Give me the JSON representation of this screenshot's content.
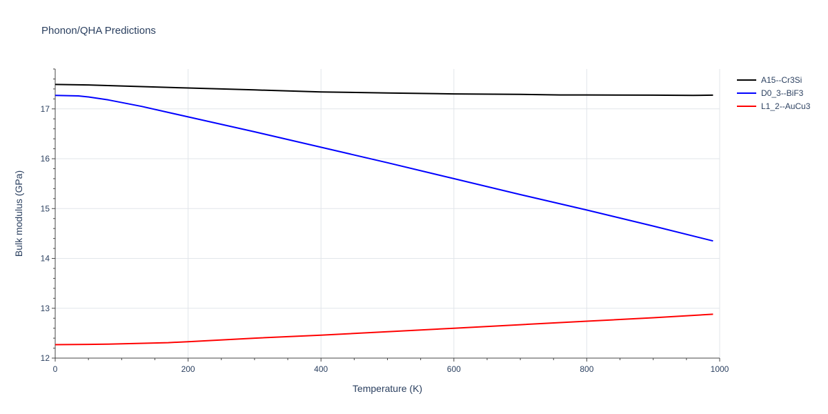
{
  "chart_data": {
    "type": "line",
    "title": "Phonon/QHA Predictions",
    "xlabel": "Temperature (K)",
    "ylabel": "Bulk modulus (GPa)",
    "xlim": [
      0,
      1000
    ],
    "ylim": [
      12,
      17.8
    ],
    "xticks": [
      0,
      200,
      400,
      600,
      800,
      1000
    ],
    "yticks": [
      12,
      13,
      14,
      15,
      16,
      17
    ],
    "grid": true,
    "legend_position": "top-right",
    "series": [
      {
        "name": "A15--Cr3Si",
        "color": "#000000",
        "x": [
          0,
          50,
          100,
          200,
          300,
          400,
          500,
          600,
          700,
          760,
          800,
          900,
          960,
          990
        ],
        "y": [
          17.49,
          17.48,
          17.46,
          17.42,
          17.38,
          17.34,
          17.32,
          17.3,
          17.29,
          17.28,
          17.28,
          17.275,
          17.27,
          17.275
        ]
      },
      {
        "name": "D0_3--BiF3",
        "color": "#0000ff",
        "x": [
          0,
          35,
          50,
          80,
          130,
          200,
          300,
          400,
          500,
          600,
          700,
          800,
          900,
          990
        ],
        "y": [
          17.27,
          17.26,
          17.24,
          17.18,
          17.05,
          16.84,
          16.54,
          16.23,
          15.92,
          15.6,
          15.28,
          14.97,
          14.65,
          14.35
        ]
      },
      {
        "name": "L1_2--AuCu3",
        "color": "#ff0000",
        "x": [
          0,
          80,
          170,
          200,
          300,
          400,
          500,
          600,
          700,
          800,
          900,
          990
        ],
        "y": [
          12.27,
          12.28,
          12.31,
          12.33,
          12.4,
          12.46,
          12.53,
          12.6,
          12.67,
          12.74,
          12.81,
          12.88
        ]
      }
    ]
  }
}
